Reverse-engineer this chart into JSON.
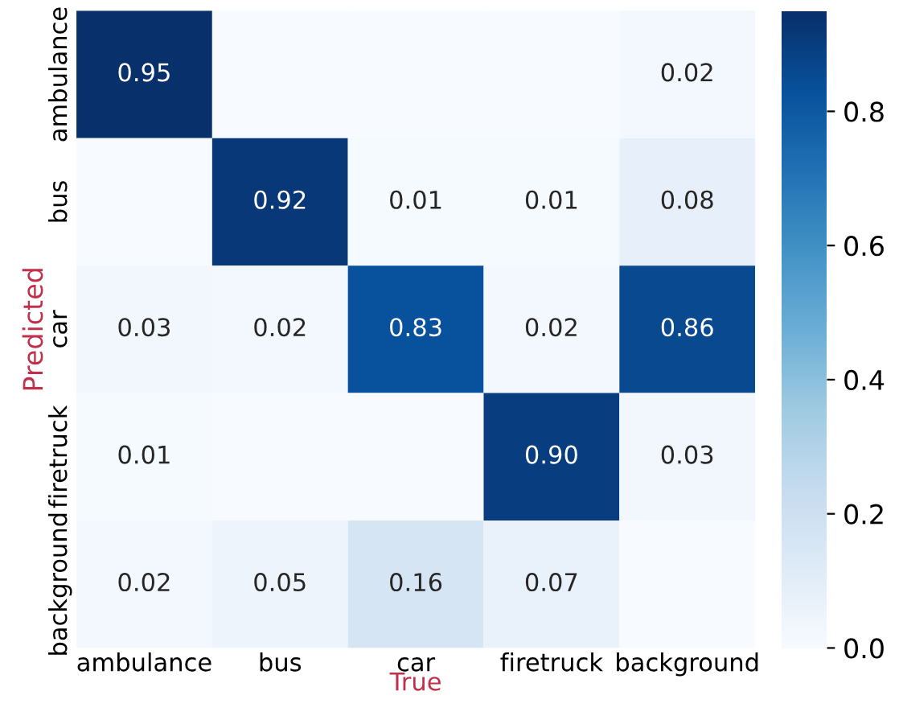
{
  "chart_data": {
    "type": "heatmap",
    "xlabel": "True",
    "ylabel": "Predicted",
    "categories": [
      "ambulance",
      "bus",
      "car",
      "firetruck",
      "background"
    ],
    "y_categories": [
      "ambulance",
      "bus",
      "car",
      "firetruck",
      "background"
    ],
    "cells": [
      [
        0.95,
        null,
        null,
        null,
        0.02
      ],
      [
        null,
        0.92,
        0.01,
        0.01,
        0.08
      ],
      [
        0.03,
        0.02,
        0.83,
        0.02,
        0.86
      ],
      [
        0.01,
        null,
        null,
        0.9,
        0.03
      ],
      [
        0.02,
        0.05,
        0.16,
        0.07,
        null
      ]
    ],
    "cell_labels": [
      [
        "0.95",
        null,
        null,
        null,
        "0.02"
      ],
      [
        null,
        "0.92",
        "0.01",
        "0.01",
        "0.08"
      ],
      [
        "0.03",
        "0.02",
        "0.83",
        "0.02",
        "0.86"
      ],
      [
        "0.01",
        null,
        null,
        "0.90",
        "0.03"
      ],
      [
        "0.02",
        "0.05",
        "0.16",
        "0.07",
        null
      ]
    ],
    "clim": [
      0.0,
      0.95
    ],
    "cticks": [
      {
        "value": 0,
        "label": "0.0"
      },
      0.2,
      0.4,
      0.6,
      0.8
    ]
  }
}
